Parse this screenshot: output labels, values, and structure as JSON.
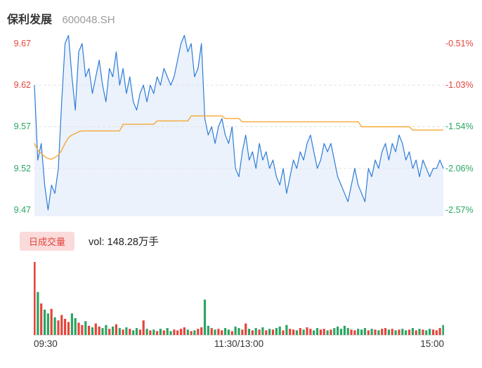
{
  "header": {
    "name": "保利发展",
    "code": "600048.SH"
  },
  "colors": {
    "up": "#e4453c",
    "down": "#2aa563",
    "price_line": "#2e7cd6",
    "avg_line": "#f6a833",
    "area_fill": "#ebf2fc",
    "grid": "#e3e3e3",
    "axis": "#e3e3e3"
  },
  "price_axis": {
    "left_labels": [
      {
        "text": "9.67",
        "color": "#e4453c"
      },
      {
        "text": "9.62",
        "color": "#e4453c"
      },
      {
        "text": "9.57",
        "color": "#2aa563"
      },
      {
        "text": "9.52",
        "color": "#2aa563"
      },
      {
        "text": "9.47",
        "color": "#2aa563"
      }
    ],
    "right_labels": [
      {
        "text": "-0.51%",
        "color": "#e4453c"
      },
      {
        "text": "-1.03%",
        "color": "#e4453c"
      },
      {
        "text": "-1.54%",
        "color": "#2aa563"
      },
      {
        "text": "-2.06%",
        "color": "#2aa563"
      },
      {
        "text": "-2.57%",
        "color": "#2aa563"
      }
    ]
  },
  "volume_header": {
    "tab_label": "日成交量",
    "vol_text": "vol: 148.28万手"
  },
  "x_axis": [
    "09:30",
    "11:30/13:00",
    "15:00"
  ],
  "chart_data": {
    "type": "line",
    "title": "保利发展 600048.SH 分时走势",
    "x_ticks": [
      "09:30",
      "11:30/13:00",
      "15:00"
    ],
    "y_ticks_price": [
      9.67,
      9.62,
      9.57,
      9.52,
      9.47
    ],
    "y_ticks_pct": [
      "-0.51%",
      "-1.03%",
      "-1.54%",
      "-2.06%",
      "-2.57%"
    ],
    "y_range": [
      9.47,
      9.67
    ],
    "grid_levels": [
      9.62,
      9.57,
      9.52
    ],
    "volume_total_label": "vol: 148.28万手",
    "legend_position": "none",
    "series": [
      {
        "name": "price",
        "values": [
          9.62,
          9.53,
          9.55,
          9.5,
          9.47,
          9.5,
          9.49,
          9.52,
          9.6,
          9.67,
          9.68,
          9.63,
          9.59,
          9.66,
          9.67,
          9.63,
          9.64,
          9.61,
          9.63,
          9.65,
          9.62,
          9.6,
          9.64,
          9.63,
          9.66,
          9.62,
          9.64,
          9.61,
          9.63,
          9.6,
          9.59,
          9.61,
          9.62,
          9.6,
          9.62,
          9.61,
          9.63,
          9.62,
          9.64,
          9.63,
          9.62,
          9.63,
          9.65,
          9.67,
          9.68,
          9.66,
          9.67,
          9.63,
          9.64,
          9.67,
          9.58,
          9.56,
          9.57,
          9.55,
          9.57,
          9.58,
          9.56,
          9.55,
          9.57,
          9.52,
          9.51,
          9.54,
          9.56,
          9.53,
          9.54,
          9.52,
          9.55,
          9.53,
          9.54,
          9.52,
          9.53,
          9.51,
          9.5,
          9.52,
          9.49,
          9.51,
          9.53,
          9.52,
          9.54,
          9.53,
          9.55,
          9.56,
          9.54,
          9.52,
          9.53,
          9.55,
          9.54,
          9.55,
          9.53,
          9.51,
          9.5,
          9.49,
          9.48,
          9.5,
          9.52,
          9.5,
          9.49,
          9.48,
          9.52,
          9.51,
          9.53,
          9.52,
          9.54,
          9.55,
          9.53,
          9.55,
          9.54,
          9.56,
          9.55,
          9.53,
          9.54,
          9.52,
          9.53,
          9.51,
          9.53,
          9.52,
          9.51,
          9.52,
          9.52,
          9.53,
          9.52
        ]
      },
      {
        "name": "avg",
        "values": [
          9.55,
          9.542,
          9.538,
          9.534,
          9.532,
          9.531,
          9.533,
          9.536,
          9.542,
          9.55,
          9.557,
          9.56,
          9.562,
          9.564,
          9.565,
          9.565,
          9.565,
          9.565,
          9.565,
          9.565,
          9.565,
          9.565,
          9.565,
          9.565,
          9.565,
          9.565,
          9.573,
          9.573,
          9.573,
          9.573,
          9.573,
          9.573,
          9.573,
          9.573,
          9.573,
          9.573,
          9.577,
          9.577,
          9.577,
          9.577,
          9.577,
          9.577,
          9.577,
          9.577,
          9.577,
          9.577,
          9.583,
          9.583,
          9.583,
          9.583,
          9.583,
          9.583,
          9.583,
          9.583,
          9.583,
          9.583,
          9.58,
          9.58,
          9.58,
          9.58,
          9.58,
          9.576,
          9.576,
          9.576,
          9.576,
          9.576,
          9.576,
          9.576,
          9.576,
          9.576,
          9.576,
          9.576,
          9.576,
          9.576,
          9.576,
          9.576,
          9.576,
          9.576,
          9.576,
          9.576,
          9.576,
          9.576,
          9.576,
          9.576,
          9.576,
          9.576,
          9.576,
          9.576,
          9.576,
          9.576,
          9.576,
          9.576,
          9.576,
          9.576,
          9.576,
          9.576,
          9.57,
          9.57,
          9.57,
          9.57,
          9.57,
          9.57,
          9.57,
          9.57,
          9.57,
          9.57,
          9.57,
          9.57,
          9.57,
          9.57,
          9.57,
          9.566,
          9.566,
          9.566,
          9.566,
          9.566,
          9.566,
          9.566,
          9.566,
          9.566,
          9.566
        ]
      },
      {
        "name": "volume",
        "values": [
          9.5,
          5.6,
          4.1,
          3.3,
          2.8,
          3.4,
          2.3,
          1.9,
          2.6,
          2.1,
          1.7,
          2.8,
          2.2,
          1.6,
          1.3,
          1.8,
          1.2,
          1.0,
          1.5,
          1.1,
          0.9,
          1.3,
          0.8,
          1.1,
          1.4,
          0.9,
          0.7,
          1.0,
          0.8,
          0.6,
          0.9,
          0.7,
          1.9,
          0.8,
          0.6,
          0.7,
          0.5,
          0.8,
          0.6,
          0.9,
          0.5,
          0.7,
          0.6,
          0.8,
          1.0,
          0.7,
          0.5,
          0.6,
          0.8,
          1.0,
          4.6,
          1.2,
          0.9,
          0.7,
          0.8,
          0.6,
          0.9,
          0.7,
          0.5,
          1.1,
          0.9,
          0.7,
          1.5,
          0.8,
          0.6,
          0.9,
          0.7,
          1.0,
          0.6,
          0.8,
          0.7,
          0.9,
          1.1,
          0.6,
          1.3,
          0.8,
          0.7,
          0.6,
          0.9,
          0.7,
          1.0,
          0.8,
          0.6,
          0.9,
          0.7,
          0.8,
          0.6,
          0.7,
          0.9,
          1.1,
          0.8,
          1.2,
          0.9,
          0.7,
          0.6,
          0.8,
          0.7,
          0.9,
          0.6,
          0.8,
          0.7,
          0.6,
          0.8,
          0.9,
          0.7,
          0.8,
          0.6,
          0.7,
          0.8,
          0.6,
          0.7,
          0.9,
          0.6,
          0.8,
          0.7,
          0.6,
          0.8,
          0.7,
          0.6,
          0.9,
          1.3
        ]
      }
    ]
  }
}
